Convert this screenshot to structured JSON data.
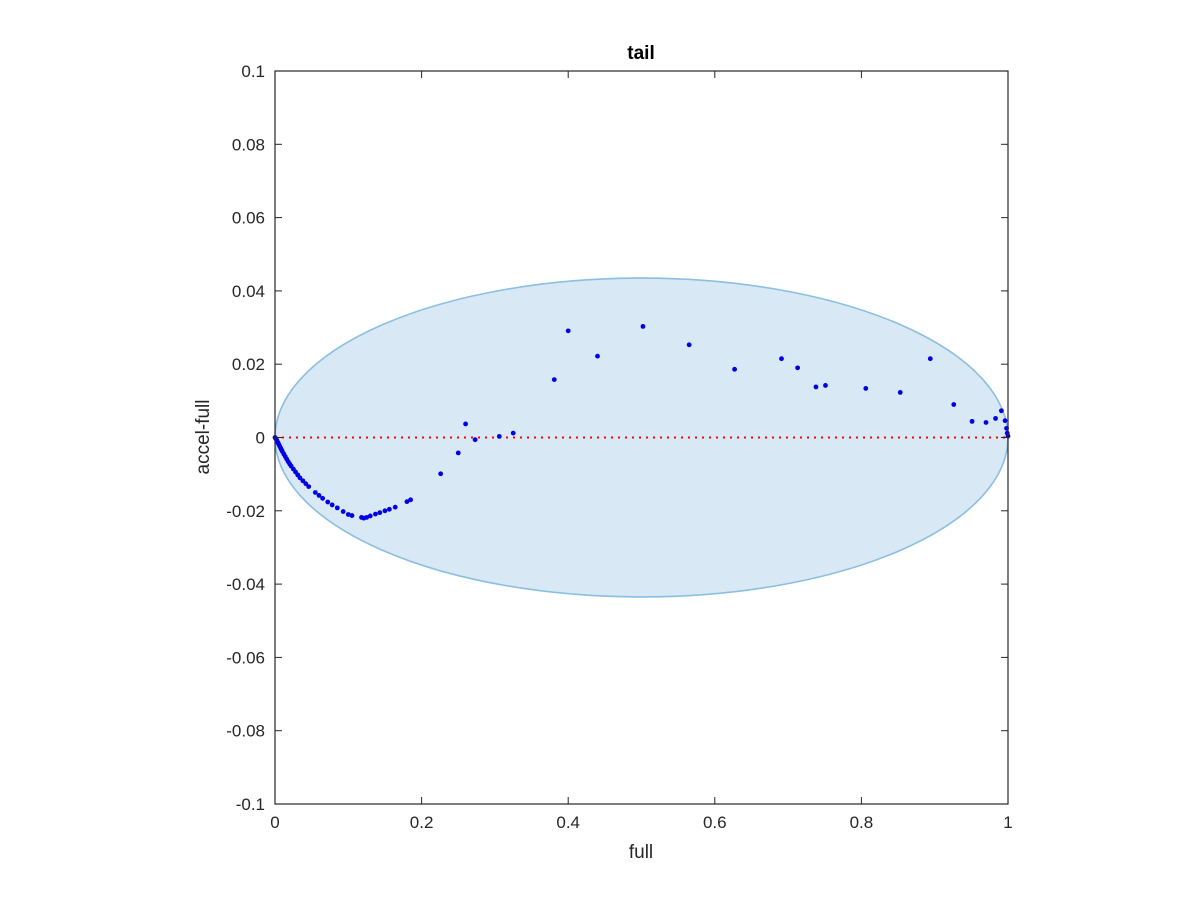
{
  "chart_data": {
    "type": "scatter",
    "title": "tail",
    "xlabel": "full",
    "ylabel": "accel-full",
    "xlim": [
      0,
      1
    ],
    "ylim": [
      -0.1,
      0.1
    ],
    "x_ticks": [
      "0",
      "0.2",
      "0.4",
      "0.6",
      "0.8",
      "1"
    ],
    "y_ticks": [
      "-0.1",
      "-0.08",
      "-0.06",
      "-0.04",
      "-0.02",
      "0",
      "0.02",
      "0.04",
      "0.06",
      "0.08",
      "0.1"
    ],
    "grid": false,
    "colors": {
      "points": "#0000e6",
      "ellipse_fill": "#d8e8f4",
      "ellipse_edge": "#8bbfe0",
      "zero_line": "#ff0000"
    },
    "reference_line": {
      "y": 0,
      "style": "dotted",
      "color": "#ff0000"
    },
    "ellipse": {
      "center": [
        0.5,
        0
      ],
      "x_radius": 0.5,
      "y_radius": 0.0435
    },
    "series": [
      {
        "values": [
          {
            "x": 0.0,
            "y": 0.0
          },
          {
            "x": 0.001,
            "y": -0.0003
          },
          {
            "x": 0.002,
            "y": -0.0006
          },
          {
            "x": 0.003,
            "y": -0.001
          },
          {
            "x": 0.004,
            "y": -0.0014
          },
          {
            "x": 0.005,
            "y": -0.0018
          },
          {
            "x": 0.006,
            "y": -0.0022
          },
          {
            "x": 0.007,
            "y": -0.0026
          },
          {
            "x": 0.008,
            "y": -0.003
          },
          {
            "x": 0.009,
            "y": -0.0034
          },
          {
            "x": 0.01,
            "y": -0.0038
          },
          {
            "x": 0.012,
            "y": -0.0045
          },
          {
            "x": 0.014,
            "y": -0.0052
          },
          {
            "x": 0.016,
            "y": -0.0059
          },
          {
            "x": 0.018,
            "y": -0.0066
          },
          {
            "x": 0.02,
            "y": -0.0072
          },
          {
            "x": 0.022,
            "y": -0.0078
          },
          {
            "x": 0.025,
            "y": -0.0086
          },
          {
            "x": 0.028,
            "y": -0.0094
          },
          {
            "x": 0.031,
            "y": -0.0102
          },
          {
            "x": 0.034,
            "y": -0.011
          },
          {
            "x": 0.038,
            "y": -0.0118
          },
          {
            "x": 0.042,
            "y": -0.0126
          },
          {
            "x": 0.046,
            "y": -0.0134
          },
          {
            "x": 0.055,
            "y": -0.015
          },
          {
            "x": 0.06,
            "y": -0.0158
          },
          {
            "x": 0.065,
            "y": -0.0166
          },
          {
            "x": 0.072,
            "y": -0.0176
          },
          {
            "x": 0.078,
            "y": -0.0184
          },
          {
            "x": 0.085,
            "y": -0.0192
          },
          {
            "x": 0.093,
            "y": -0.0202
          },
          {
            "x": 0.1,
            "y": -0.021
          },
          {
            "x": 0.105,
            "y": -0.0213
          },
          {
            "x": 0.118,
            "y": -0.0218
          },
          {
            "x": 0.121,
            "y": -0.022
          },
          {
            "x": 0.125,
            "y": -0.0218
          },
          {
            "x": 0.13,
            "y": -0.0214
          },
          {
            "x": 0.137,
            "y": -0.0209
          },
          {
            "x": 0.143,
            "y": -0.0205
          },
          {
            "x": 0.15,
            "y": -0.02
          },
          {
            "x": 0.156,
            "y": -0.0196
          },
          {
            "x": 0.164,
            "y": -0.019
          },
          {
            "x": 0.18,
            "y": -0.0175
          },
          {
            "x": 0.185,
            "y": -0.017
          },
          {
            "x": 0.226,
            "y": -0.0099
          },
          {
            "x": 0.25,
            "y": -0.0042
          },
          {
            "x": 0.26,
            "y": 0.0037
          },
          {
            "x": 0.273,
            "y": -0.0006
          },
          {
            "x": 0.306,
            "y": 0.0003
          },
          {
            "x": 0.325,
            "y": 0.0012
          },
          {
            "x": 0.381,
            "y": 0.0158
          },
          {
            "x": 0.4,
            "y": 0.0291
          },
          {
            "x": 0.44,
            "y": 0.0222
          },
          {
            "x": 0.502,
            "y": 0.0303
          },
          {
            "x": 0.565,
            "y": 0.0253
          },
          {
            "x": 0.627,
            "y": 0.0186
          },
          {
            "x": 0.691,
            "y": 0.0215
          },
          {
            "x": 0.713,
            "y": 0.019
          },
          {
            "x": 0.738,
            "y": 0.0138
          },
          {
            "x": 0.751,
            "y": 0.0142
          },
          {
            "x": 0.806,
            "y": 0.0134
          },
          {
            "x": 0.853,
            "y": 0.0123
          },
          {
            "x": 0.894,
            "y": 0.0215
          },
          {
            "x": 0.926,
            "y": 0.009
          },
          {
            "x": 0.951,
            "y": 0.0044
          },
          {
            "x": 0.97,
            "y": 0.0041
          },
          {
            "x": 0.983,
            "y": 0.0052
          },
          {
            "x": 0.991,
            "y": 0.0073
          },
          {
            "x": 0.996,
            "y": 0.0046
          },
          {
            "x": 0.998,
            "y": 0.0025
          },
          {
            "x": 0.999,
            "y": 0.0012
          },
          {
            "x": 1.0,
            "y": 0.0004
          }
        ]
      }
    ]
  }
}
